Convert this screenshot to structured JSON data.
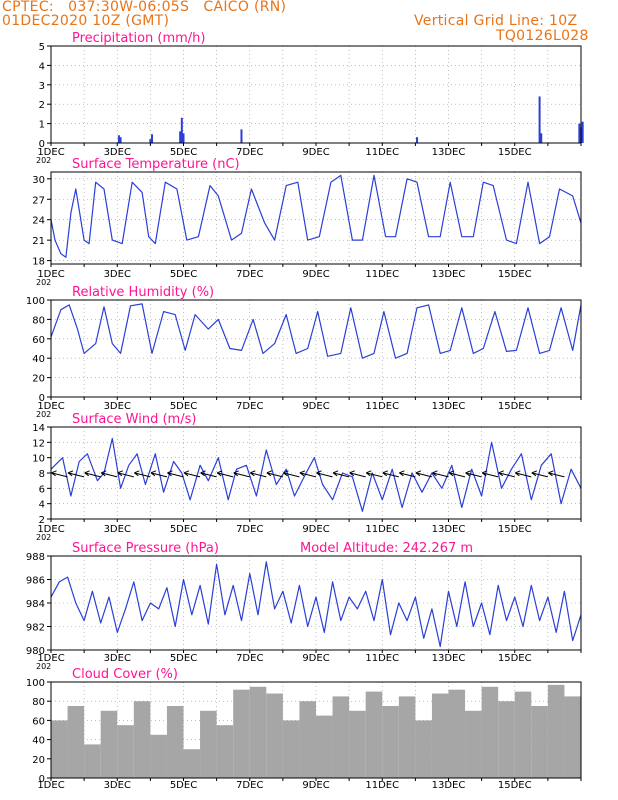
{
  "header": {
    "line1": "CPTEC:   037:30W-06:05S   CAICO (RN)",
    "line2": "01DEC2020 10Z (GMT)",
    "right1": "Vertical Grid Line: 10Z",
    "right2": "TQ0126L028"
  },
  "colors": {
    "header": "#e8741a",
    "panel_title": "#ff1493",
    "series": "#2b3fd6",
    "cloud": "#a6a6a6"
  },
  "x_axis": {
    "tick_labels": [
      "1DEC",
      "3DEC",
      "5DEC",
      "7DEC",
      "9DEC",
      "11DEC",
      "13DEC",
      "15DEC"
    ],
    "sub_label": "202"
  },
  "chart_data": [
    {
      "type": "bar",
      "title": "Precipitation (mm/h)",
      "ylim": [
        0,
        5
      ],
      "yticks": [
        "0",
        "1",
        "2",
        "3",
        "4",
        "5"
      ],
      "x_unit": "days since 01DEC2020 10Z",
      "x": [
        2.05,
        2.1,
        3.0,
        3.05,
        3.9,
        3.95,
        4.0,
        5.75,
        11.05,
        14.75,
        14.8,
        15.95,
        16.0,
        16.05
      ],
      "values": [
        0.4,
        0.3,
        0.2,
        0.45,
        0.6,
        1.3,
        0.5,
        0.7,
        0.3,
        2.4,
        0.5,
        1.0,
        0.8,
        1.1
      ]
    },
    {
      "type": "line",
      "title": "Surface Temperature (nC)",
      "ylim": [
        17.5,
        31
      ],
      "yticks": [
        "18",
        "21",
        "24",
        "27",
        "30"
      ],
      "x_unit": "days since 01DEC2020 10Z",
      "x": [
        0,
        0.12,
        0.3,
        0.45,
        0.6,
        0.75,
        1.0,
        1.15,
        1.35,
        1.6,
        1.85,
        2.15,
        2.45,
        2.75,
        2.95,
        3.15,
        3.45,
        3.8,
        4.1,
        4.45,
        4.8,
        5.05,
        5.45,
        5.75,
        6.05,
        6.45,
        6.75,
        7.1,
        7.45,
        7.75,
        8.1,
        8.45,
        8.75,
        9.1,
        9.4,
        9.75,
        10.1,
        10.4,
        10.75,
        11.05,
        11.4,
        11.75,
        12.05,
        12.4,
        12.75,
        13.05,
        13.35,
        13.75,
        14.05,
        14.4,
        14.75,
        15.05,
        15.35,
        15.75,
        16.0
      ],
      "values": [
        24,
        21,
        19,
        18.5,
        25,
        28.5,
        21,
        20.5,
        29.5,
        28.5,
        21,
        20.5,
        29.5,
        28,
        21.5,
        20.5,
        29.5,
        28.5,
        21,
        21.5,
        29,
        27.5,
        21,
        22,
        28.5,
        23.5,
        21,
        29,
        29.5,
        21,
        21.5,
        29.5,
        30.5,
        21,
        21,
        30.5,
        21.5,
        21.5,
        30,
        29.5,
        21.5,
        21.5,
        29.5,
        21.5,
        21.5,
        29.5,
        29,
        21,
        20.5,
        29.5,
        20.5,
        21.5,
        28.5,
        27.5,
        23.5
      ]
    },
    {
      "type": "line",
      "title": "Relative Humidity (%)",
      "ylim": [
        0,
        100
      ],
      "yticks": [
        "0",
        "20",
        "40",
        "60",
        "80",
        "100"
      ],
      "x_unit": "days since 01DEC2020 10Z",
      "x": [
        0,
        0.3,
        0.55,
        0.8,
        1.0,
        1.35,
        1.6,
        1.85,
        2.1,
        2.4,
        2.75,
        3.05,
        3.4,
        3.75,
        4.05,
        4.35,
        4.75,
        5.05,
        5.4,
        5.75,
        6.1,
        6.4,
        6.75,
        7.1,
        7.4,
        7.75,
        8.05,
        8.35,
        8.75,
        9.05,
        9.4,
        9.75,
        10.05,
        10.4,
        10.75,
        11.05,
        11.4,
        11.75,
        12.05,
        12.4,
        12.75,
        13.05,
        13.4,
        13.75,
        14.05,
        14.4,
        14.75,
        15.05,
        15.4,
        15.75,
        16.0
      ],
      "values": [
        62,
        90,
        95,
        70,
        45,
        55,
        93,
        55,
        45,
        94,
        96,
        45,
        88,
        85,
        48,
        85,
        70,
        80,
        50,
        48,
        80,
        45,
        55,
        85,
        45,
        50,
        88,
        42,
        45,
        92,
        40,
        45,
        88,
        40,
        45,
        92,
        95,
        45,
        48,
        92,
        45,
        50,
        88,
        47,
        48,
        92,
        45,
        48,
        92,
        48,
        95
      ]
    },
    {
      "type": "line",
      "title": "Surface Wind (m/s)",
      "ylim": [
        2,
        14
      ],
      "yticks": [
        "2",
        "4",
        "6",
        "8",
        "10",
        "12",
        "14"
      ],
      "x_unit": "days since 01DEC2020 10Z",
      "x": [
        0,
        0.35,
        0.6,
        0.85,
        1.1,
        1.4,
        1.6,
        1.85,
        2.1,
        2.35,
        2.6,
        2.85,
        3.15,
        3.4,
        3.7,
        3.95,
        4.2,
        4.5,
        4.75,
        5.05,
        5.35,
        5.6,
        5.9,
        6.2,
        6.5,
        6.8,
        7.1,
        7.35,
        7.7,
        7.95,
        8.2,
        8.5,
        8.8,
        9.1,
        9.4,
        9.7,
        10.0,
        10.3,
        10.6,
        10.9,
        11.2,
        11.5,
        11.8,
        12.1,
        12.4,
        12.7,
        13.0,
        13.3,
        13.6,
        13.9,
        14.2,
        14.5,
        14.8,
        15.1,
        15.4,
        15.7,
        16.0
      ],
      "values": [
        8.5,
        10,
        5,
        9.5,
        10.5,
        7,
        8,
        12.5,
        6,
        9,
        10.5,
        6.5,
        10.5,
        5.5,
        9.5,
        8,
        4.5,
        9,
        7,
        10,
        4.5,
        8.5,
        9,
        5,
        11,
        6.5,
        8.5,
        5,
        8,
        10,
        6.5,
        4.5,
        8,
        7.5,
        3,
        8,
        4.5,
        8.5,
        3.5,
        8,
        5.5,
        8,
        6,
        9,
        3.5,
        8.5,
        5,
        12,
        6,
        8.5,
        10.5,
        4.5,
        9,
        10.5,
        4,
        8.5,
        6
      ]
    },
    {
      "type": "line",
      "title": "Surface Pressure (hPa)",
      "subtitle": "Model Altitude: 242.267 m",
      "ylim": [
        980,
        988
      ],
      "yticks": [
        "980",
        "982",
        "984",
        "986",
        "988"
      ],
      "x_unit": "days since 01DEC2020 10Z",
      "x": [
        0,
        0.25,
        0.5,
        0.75,
        1.0,
        1.25,
        1.5,
        1.75,
        2.0,
        2.25,
        2.5,
        2.75,
        3.0,
        3.25,
        3.5,
        3.75,
        4.0,
        4.25,
        4.5,
        4.75,
        5.0,
        5.25,
        5.5,
        5.75,
        6.0,
        6.25,
        6.5,
        6.75,
        7.0,
        7.25,
        7.5,
        7.75,
        8.0,
        8.25,
        8.5,
        8.75,
        9.0,
        9.25,
        9.5,
        9.75,
        10.0,
        10.25,
        10.5,
        10.75,
        11.0,
        11.25,
        11.5,
        11.75,
        12.0,
        12.25,
        12.5,
        12.75,
        13.0,
        13.25,
        13.5,
        13.75,
        14.0,
        14.25,
        14.5,
        14.75,
        15.0,
        15.25,
        15.5,
        15.75,
        16.0
      ],
      "values": [
        984.5,
        985.8,
        986.2,
        984.0,
        982.5,
        985.0,
        982.3,
        984.5,
        981.5,
        983.5,
        985.8,
        982.5,
        984.0,
        983.5,
        985.3,
        982.0,
        986.0,
        983.0,
        985.5,
        982.2,
        987.3,
        983.0,
        985.5,
        982.5,
        986.5,
        983.0,
        987.5,
        983.5,
        985.0,
        982.3,
        985.5,
        982.0,
        984.5,
        981.5,
        985.8,
        982.5,
        984.5,
        983.5,
        985.0,
        982.5,
        986.0,
        981.3,
        984.0,
        982.5,
        984.5,
        981.0,
        983.5,
        980.3,
        985.0,
        982.0,
        985.8,
        982.0,
        984.0,
        981.3,
        985.5,
        982.5,
        984.5,
        982.0,
        985.5,
        982.5,
        984.5,
        981.5,
        985.0,
        980.8,
        983.0
      ]
    },
    {
      "type": "bar",
      "title": "Cloud Cover (%)",
      "ylim": [
        0,
        100
      ],
      "yticks": [
        "0",
        "20",
        "40",
        "60",
        "80",
        "100"
      ],
      "x_unit": "days since 01DEC2020 10Z",
      "x": [
        0,
        0.5,
        1,
        1.5,
        2,
        2.5,
        3,
        3.5,
        4,
        4.5,
        5,
        5.5,
        6,
        6.5,
        7,
        7.5,
        8,
        8.5,
        9,
        9.5,
        10,
        10.5,
        11,
        11.5,
        12,
        12.5,
        13,
        13.5,
        14,
        14.5,
        15,
        15.5
      ],
      "values": [
        60,
        75,
        35,
        70,
        55,
        80,
        45,
        75,
        30,
        70,
        55,
        92,
        95,
        88,
        60,
        80,
        65,
        85,
        70,
        90,
        75,
        85,
        60,
        88,
        92,
        70,
        95,
        80,
        90,
        75,
        97,
        85
      ]
    }
  ]
}
